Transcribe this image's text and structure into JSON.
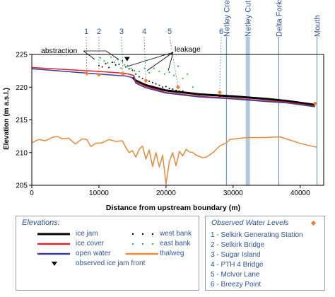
{
  "chart_data": {
    "type": "line",
    "xlabel": "Distance from upstream boundary (m)",
    "ylabel": "Elevation (m a.s.l.)",
    "xlim": [
      0,
      43500
    ],
    "ylim": [
      205,
      225
    ],
    "x_ticks": [
      0,
      10000,
      20000,
      30000,
      40000
    ],
    "y_ticks": [
      205,
      210,
      215,
      220,
      225
    ],
    "grid": false,
    "series": [
      {
        "name": "ice jam",
        "color": "#000000",
        "x": [
          15000,
          15500,
          17000,
          20000,
          25000,
          30000,
          35000,
          38000,
          42200
        ],
        "y": [
          221.5,
          221.0,
          220.3,
          219.5,
          218.9,
          218.6,
          218.2,
          217.9,
          217.3
        ]
      },
      {
        "name": "ice cover",
        "color": "#e0242b",
        "x": [
          0,
          5000,
          10000,
          14000,
          15200,
          15500,
          17000,
          20000,
          25000,
          30000,
          35000,
          38000,
          42200
        ],
        "y": [
          223.0,
          222.7,
          222.4,
          222.1,
          221.8,
          220.8,
          220.1,
          219.2,
          218.6,
          218.3,
          217.9,
          217.7,
          217.1
        ]
      },
      {
        "name": "open water",
        "color": "#3b3f9e",
        "x": [
          0,
          5000,
          10000,
          14000,
          15200,
          15500,
          17000,
          20000,
          25000,
          30000,
          35000,
          38000,
          42200
        ],
        "y": [
          222.8,
          222.4,
          222.0,
          221.7,
          221.4,
          220.6,
          219.9,
          219.1,
          218.5,
          218.2,
          217.8,
          217.6,
          217.0
        ]
      },
      {
        "name": "thalweg",
        "color": "#e8893a",
        "x": [
          0,
          1000,
          2000,
          3000,
          3800,
          4500,
          5500,
          6500,
          7500,
          8200,
          8800,
          9500,
          10500,
          11500,
          12500,
          13500,
          14000,
          14500,
          15000,
          15500,
          16000,
          16500,
          17000,
          17500,
          18000,
          18500,
          19000,
          19500,
          20000,
          20500,
          21000,
          21500,
          22000,
          22500,
          23000,
          23500,
          24000,
          24500,
          25000,
          25500,
          26000,
          27000,
          28000,
          29000,
          29500,
          32000,
          35000,
          37000,
          40000,
          42500
        ],
        "y": [
          211.5,
          212.0,
          211.8,
          212.3,
          212.5,
          212.1,
          212.2,
          211.3,
          212.1,
          212.0,
          210.9,
          211.4,
          211.5,
          212.0,
          211.7,
          211.8,
          210.8,
          210.0,
          210.3,
          209.3,
          210.5,
          211.0,
          209.0,
          210.4,
          207.9,
          210.0,
          207.8,
          209.6,
          205.2,
          208.6,
          210.0,
          208.0,
          210.2,
          209.5,
          210.5,
          210.1,
          210.0,
          209.6,
          209.4,
          209.2,
          209.3,
          210.0,
          211.0,
          211.5,
          212.0,
          212.3,
          212.3,
          212.4,
          211.4,
          210.8
        ]
      }
    ],
    "west_bank": {
      "name": "west bank",
      "color": "#000000",
      "x": [
        10000,
        10500,
        11000,
        11500,
        12000,
        12500,
        13000,
        13500,
        14000,
        14500,
        15000,
        15500,
        16000,
        16500,
        17000,
        17500,
        18000,
        18500,
        19000,
        19500,
        20000,
        20500,
        21000,
        21500,
        22000,
        22500,
        23000,
        23500,
        24000,
        25000,
        26000,
        27000,
        28000
      ],
      "y": [
        223.3,
        223.1,
        223.6,
        223.0,
        223.8,
        223.4,
        223.5,
        224.0,
        223.1,
        222.8,
        222.6,
        222.0,
        221.6,
        221.3,
        221.0,
        220.9,
        220.7,
        220.5,
        220.3,
        220.0,
        220.1,
        219.8,
        219.7,
        219.5,
        219.4,
        219.4,
        219.2,
        219.1,
        219.0,
        218.8,
        218.8,
        218.7,
        218.6
      ]
    },
    "east_bank": {
      "name": "east bank",
      "color": "#32b34a",
      "x": [
        10200,
        10800,
        11300,
        11800,
        12300,
        12800,
        13300,
        13800,
        14300,
        14800,
        15300,
        16000,
        16800,
        17500,
        18200,
        19000,
        19800,
        20500,
        21200,
        21800,
        22500,
        23200,
        24000
      ],
      "y": [
        224.5,
        224.0,
        223.7,
        224.6,
        223.8,
        224.2,
        222.9,
        223.4,
        223.3,
        222.9,
        222.5,
        222.4,
        222.9,
        222.2,
        222.9,
        222.4,
        222.0,
        222.3,
        221.8,
        223.2,
        221.3,
        222.0,
        220.0
      ]
    },
    "observed_ice_jam_front": {
      "name": "observed ice jam front",
      "x": 14200,
      "y": 224.3
    },
    "observed_water_levels": {
      "name": "Observed Water Levels",
      "color": "#ed7d31",
      "points": [
        {
          "id": "1",
          "label": "Selkirk Generating Station",
          "x": 8200,
          "y": 222.1
        },
        {
          "id": "2",
          "label": "Selkirk Bridge",
          "x": 10000,
          "y": 221.9
        },
        {
          "id": "3",
          "label": "Sugar Island",
          "x": 13600,
          "y": 222.0
        },
        {
          "id": "4",
          "label": "PTH 4 Bridge",
          "x": 17000,
          "y": 221.0
        },
        {
          "id": "5",
          "label": "McIvor Lane",
          "x": 21800,
          "y": 220.0
        },
        {
          "id": "6",
          "label": "Breezy Point",
          "x": 28000,
          "y": 219.2
        },
        {
          "id": "",
          "label": "",
          "x": 42200,
          "y": 217.5
        }
      ]
    },
    "landmarks": [
      {
        "label": "Netley Creek",
        "x": 29000
      },
      {
        "label": "Netley Cut",
        "x": 32200,
        "band": true
      },
      {
        "label": "Delta Forks",
        "x": 36800
      },
      {
        "label": "Mouth",
        "x": 42500
      }
    ],
    "annotations": [
      {
        "text": "abstraction",
        "x": 12200,
        "y": 223.8
      },
      {
        "text": "leakage",
        "x": 18200,
        "y": 224.3
      }
    ],
    "legend_left": {
      "title": "Elevations:",
      "items": [
        {
          "label": "ice jam",
          "marker": "line",
          "color": "#000000"
        },
        {
          "label": "west bank",
          "marker": "dots",
          "color": "#000000"
        },
        {
          "label": "ice cover",
          "marker": "line",
          "color": "#e0242b"
        },
        {
          "label": "east bank",
          "marker": "dots",
          "color": "#32b34a"
        },
        {
          "label": "open water",
          "marker": "line",
          "color": "#3b3f9e"
        },
        {
          "label": "thalweg",
          "marker": "line",
          "color": "#e8893a"
        },
        {
          "label": "observed ice jam front",
          "marker": "triangle",
          "color": "#000000"
        }
      ]
    },
    "legend_right": {
      "title": "Observed Water Levels",
      "items": [
        "1 - Selkirk Generating Station",
        "2 - Selkirk Bridge",
        "3 - Sugar Island",
        "4 - PTH 4 Bridge",
        "5 - McIvor Lane",
        "6 - Breezy Point"
      ]
    }
  }
}
